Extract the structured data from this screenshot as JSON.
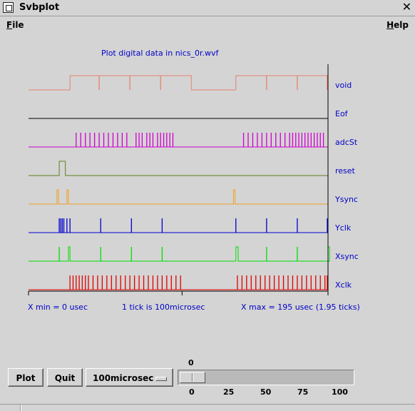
{
  "window": {
    "title": "Svbplot"
  },
  "menubar": {
    "file": {
      "underline": "F",
      "rest": "ile"
    },
    "help": {
      "underline": "H",
      "rest": "elp"
    }
  },
  "plot": {
    "title": "Plot digital data in nics_0r.wvf",
    "x_min_label": "X min = 0 usec",
    "tick_label": "1 tick is 100microsec",
    "x_max_label": "X max = 195 usec (1.95 ticks)",
    "x_range_usec": [
      0,
      195
    ]
  },
  "chart_data": {
    "type": "line",
    "title": "Plot digital data in nics_0r.wvf",
    "x_unit": "usec",
    "x_range": [
      0,
      195
    ],
    "series": [
      {
        "name": "void",
        "color": "#e8826c",
        "high": [
          [
            27,
            106
          ],
          [
            135,
            195
          ]
        ],
        "spikes": [
          46,
          66,
          86,
          155,
          175,
          195
        ]
      },
      {
        "name": "Eof",
        "color": "#000000",
        "high": [],
        "spikes": []
      },
      {
        "name": "adcSt",
        "color": "#d000d0",
        "high": [],
        "spikes": [
          31,
          34,
          37,
          40,
          43,
          46,
          49,
          52,
          55,
          58,
          61,
          64,
          70,
          72,
          74,
          77,
          79,
          81,
          84,
          86,
          88,
          90,
          92,
          94,
          140,
          143,
          146,
          149,
          152,
          155,
          158,
          161,
          164,
          167,
          170,
          172,
          174,
          176,
          178,
          180,
          182,
          184,
          186,
          188,
          190,
          192
        ]
      },
      {
        "name": "reset",
        "color": "#5e7f1e",
        "high": [
          [
            20,
            24
          ]
        ],
        "spikes": []
      },
      {
        "name": "Ysync",
        "color": "#f0a028",
        "high": [
          [
            18.5,
            19.5
          ],
          [
            25,
            26
          ],
          [
            133.5,
            134.5
          ]
        ],
        "spikes": []
      },
      {
        "name": "Yclk",
        "color": "#0000d0",
        "high": [],
        "spikes": [
          20,
          21,
          22,
          23,
          25,
          27,
          47,
          67,
          87,
          135,
          155,
          175,
          195
        ]
      },
      {
        "name": "Xsync",
        "color": "#00e000",
        "high": [
          [
            26,
            27
          ],
          [
            135,
            136.5
          ],
          [
            195,
            196
          ]
        ],
        "spikes": [
          20,
          47,
          67,
          87,
          155,
          175
        ]
      },
      {
        "name": "Xclk",
        "color": "#e00000",
        "high": [],
        "spikes": [
          27,
          29,
          31,
          33,
          35,
          37,
          39,
          42,
          45,
          48,
          51,
          54,
          57,
          60,
          63,
          66,
          69,
          72,
          75,
          78,
          81,
          84,
          87,
          90,
          93,
          96,
          99,
          136,
          139,
          142,
          145,
          148,
          151,
          154,
          157,
          160,
          163,
          166,
          169,
          172,
          175,
          178,
          181,
          184,
          187,
          190,
          193,
          195
        ]
      }
    ]
  },
  "controls": {
    "plot_button": "Plot",
    "quit_button": "Quit",
    "unit_menu": "100microsec",
    "slider": {
      "value": "0",
      "ticks": [
        "0",
        "25",
        "50",
        "75",
        "100"
      ]
    }
  },
  "colors": {
    "label_color": "#0000c8",
    "background": "#d4d4d4"
  }
}
